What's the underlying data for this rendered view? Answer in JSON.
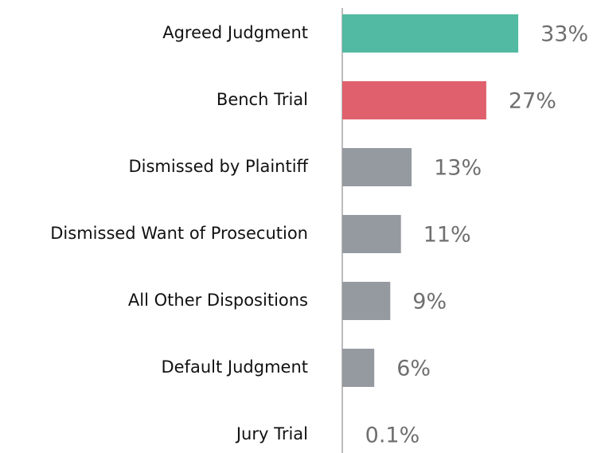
{
  "chart_data": {
    "type": "bar",
    "orientation": "horizontal",
    "categories": [
      "Agreed Judgment",
      "Bench Trial",
      "Dismissed by Plaintiff",
      "Dismissed Want of Prosecution",
      "All Other Dispositions",
      "Default Judgment",
      "Jury Trial"
    ],
    "values": [
      33,
      27,
      13,
      11,
      9,
      6,
      0.1
    ],
    "value_labels": [
      "33%",
      "27%",
      "13%",
      "11%",
      "9%",
      "6%",
      "0.1%"
    ],
    "colors": [
      "#52b9a2",
      "#e0606d",
      "#959aa0",
      "#959aa0",
      "#959aa0",
      "#959aa0",
      "#959aa0"
    ]
  }
}
